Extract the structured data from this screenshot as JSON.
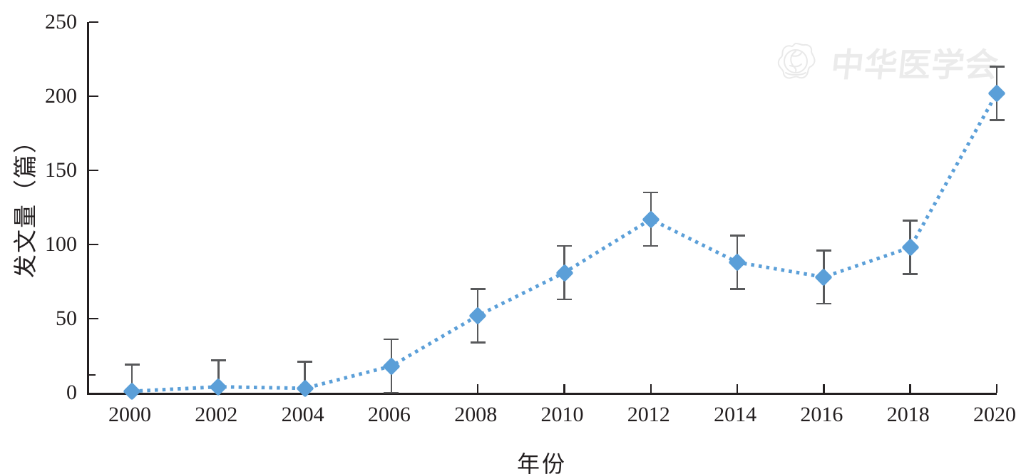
{
  "chart_data": {
    "type": "line",
    "title": "",
    "xlabel": "年份",
    "ylabel": "发文量（篇）",
    "x": [
      2000,
      2002,
      2004,
      2006,
      2008,
      2010,
      2012,
      2014,
      2016,
      2018,
      2020
    ],
    "series": [
      {
        "name": "发文量",
        "values": [
          1,
          4,
          3,
          18,
          52,
          81,
          117,
          88,
          78,
          98,
          202
        ],
        "error": 18
      }
    ],
    "ylim": [
      0,
      250
    ],
    "yticks": [
      0,
      50,
      100,
      150,
      200,
      250
    ],
    "y_minor_ticks": [
      12
    ],
    "grid": false,
    "legend_position": "none",
    "marker": "diamond",
    "line_style": "dotted",
    "colors": {
      "line": "#5b9fd8",
      "marker": "#5b9fd8",
      "error_bar": "#58595b",
      "axis": "#231f20",
      "watermark": "#ebebeb"
    }
  },
  "watermark": {
    "text": "中华医学会"
  },
  "icons": {
    "watermark_emblem": "chinese-medical-association-flower-emblem"
  }
}
